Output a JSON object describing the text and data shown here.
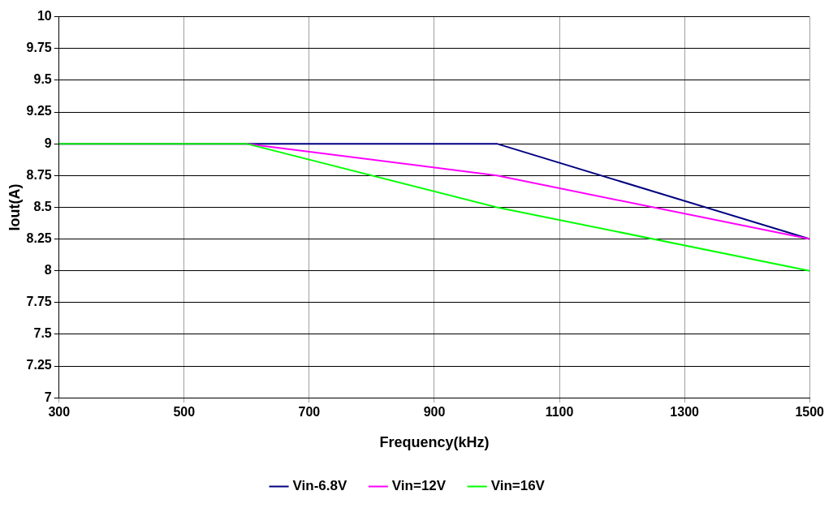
{
  "chart_data": {
    "type": "line",
    "xlabel": "Frequency(kHz)",
    "ylabel": "Iout(A)",
    "x": [
      300,
      600,
      1000,
      1500
    ],
    "series": [
      {
        "name": "Vin-6.8V",
        "color": "#000080",
        "values": [
          9,
          9,
          9,
          8.25
        ]
      },
      {
        "name": "Vin=12V",
        "color": "#ff00ff",
        "values": [
          9,
          9,
          8.75,
          8.25
        ]
      },
      {
        "name": "Vin=16V",
        "color": "#00ff00",
        "values": [
          9,
          9,
          8.5,
          8
        ]
      }
    ],
    "xlim": [
      300,
      1500
    ],
    "xticks": [
      300,
      500,
      700,
      900,
      1100,
      1300,
      1500
    ],
    "ylim": [
      7,
      10
    ],
    "yticks": [
      7,
      7.25,
      7.5,
      7.75,
      8,
      8.25,
      8.5,
      8.75,
      9,
      9.25,
      9.5,
      9.75,
      10
    ],
    "grid": true,
    "legend": "bottom",
    "marker": "none",
    "line_style": "solid"
  }
}
